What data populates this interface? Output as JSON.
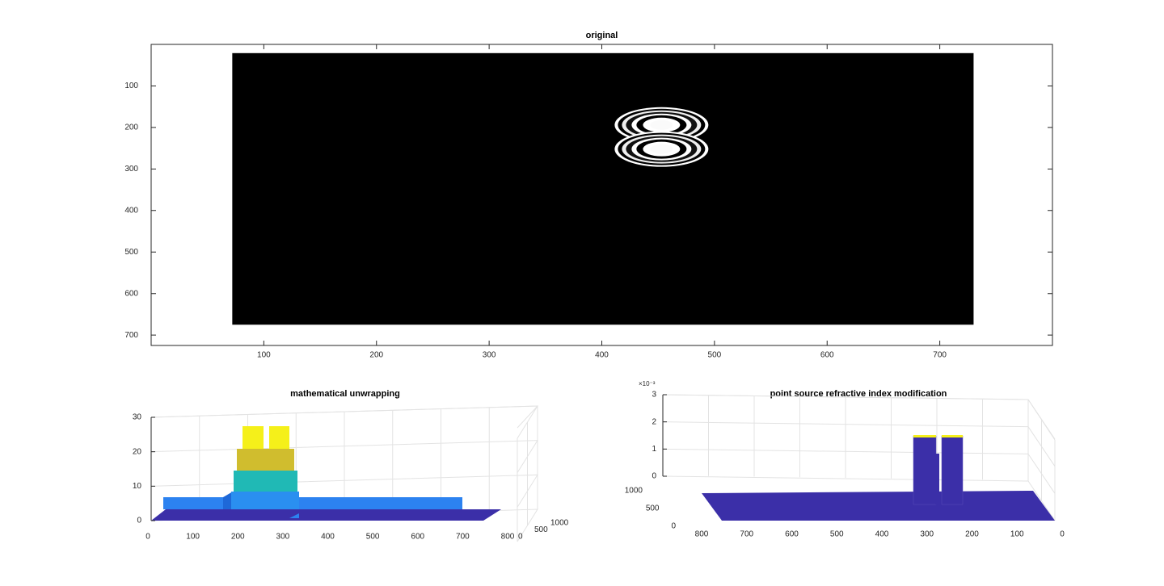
{
  "chart_data": [
    {
      "type": "image",
      "title": "original",
      "xlim": [
        0,
        800
      ],
      "ylim": [
        0,
        725
      ],
      "xticks": [
        100,
        200,
        300,
        400,
        500,
        600,
        700
      ],
      "yticks": [
        100,
        200,
        300,
        400,
        500,
        600,
        700
      ],
      "image_extent": [
        72,
        730,
        21,
        675
      ],
      "colormap": "gray",
      "rings": [
        {
          "x": 453,
          "y": 194
        },
        {
          "x": 453,
          "y": 252
        }
      ]
    },
    {
      "type": "surface3d",
      "title": "mathematical unwrapping",
      "xlim": [
        0,
        800
      ],
      "ylim": [
        0,
        1000
      ],
      "zlim": [
        0,
        30
      ],
      "xticks": [
        0,
        100,
        200,
        300,
        400,
        500,
        600,
        700,
        800
      ],
      "yticks": [
        0,
        500,
        1000
      ],
      "zticks": [
        0,
        10,
        20,
        30
      ],
      "grid": true
    },
    {
      "type": "surface3d",
      "title": "point source refractive index modification",
      "xlim": [
        0,
        800
      ],
      "ylim": [
        0,
        1000
      ],
      "zlim": [
        0,
        0.003
      ],
      "xticks": [
        0,
        100,
        200,
        300,
        400,
        500,
        600,
        700,
        800
      ],
      "yticks": [
        0,
        500,
        1000
      ],
      "zticks": [
        {
          "value": 0,
          "label": "0"
        },
        {
          "value": 0.001,
          "label": "1"
        },
        {
          "value": 0.002,
          "label": "2"
        },
        {
          "value": 0.003,
          "label": "3"
        }
      ],
      "z_exponent_label": "×10⁻³",
      "grid": true
    }
  ]
}
